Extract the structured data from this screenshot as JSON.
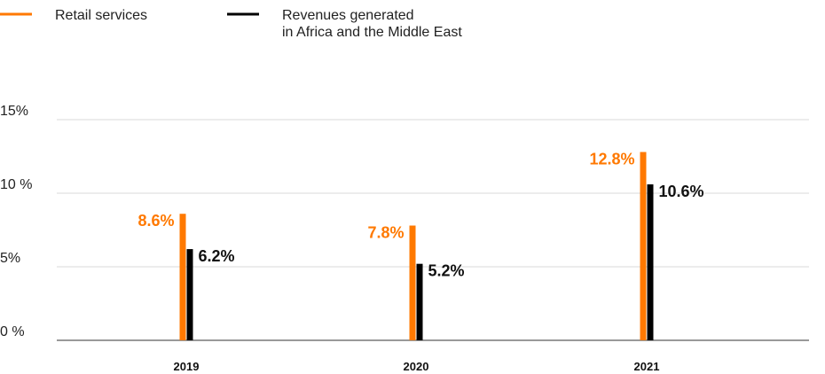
{
  "chart_data": {
    "type": "bar",
    "categories": [
      "2019",
      "2020",
      "2021"
    ],
    "series": [
      {
        "name": "Retail services",
        "values": [
          8.6,
          7.8,
          12.8
        ],
        "labels": [
          "8.6%",
          "7.8%",
          "12.8%"
        ],
        "color": "#ff7900"
      },
      {
        "name": "Revenues generated in Africa and the Middle East",
        "name_lines": [
          "Revenues generated",
          "in Africa and the Middle East"
        ],
        "values": [
          6.2,
          5.2,
          10.6
        ],
        "labels": [
          "6.2%",
          "5.2%",
          "10.6%"
        ],
        "color": "#000000"
      }
    ],
    "y_ticks": [
      {
        "value": 0,
        "label": "0 %"
      },
      {
        "value": 5,
        "label": "5%"
      },
      {
        "value": 10,
        "label": "10 %"
      },
      {
        "value": 15,
        "label": "15%"
      }
    ],
    "ylim": [
      0,
      15
    ],
    "grid": true,
    "legend_position": "top-left",
    "title": "",
    "xlabel": "",
    "ylabel": ""
  }
}
